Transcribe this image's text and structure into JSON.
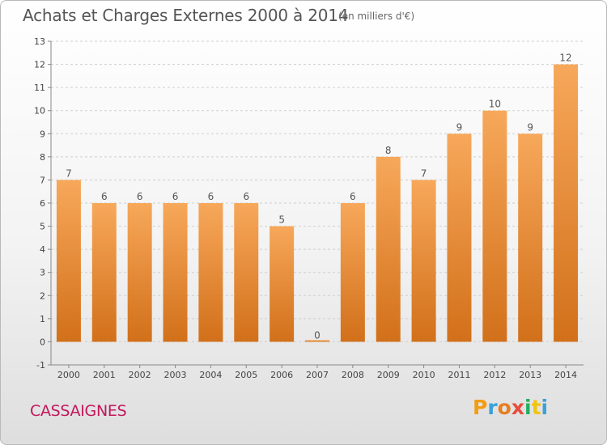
{
  "title": "Achats et Charges Externes 2000 à 2014",
  "subtitle": "(en milliers d'€)",
  "commune": "CASSAIGNES",
  "logo": {
    "letters": [
      "P",
      "r",
      "o",
      "x",
      "i",
      "t",
      "i"
    ],
    "colors": [
      "#f39c12",
      "#3aa0d8",
      "#e67e22",
      "#e74c3c",
      "#27ae60",
      "#f1c40f",
      "#3aa0d8"
    ]
  },
  "colors": {
    "bar_top": "#f7a85a",
    "bar_bottom": "#d2701a",
    "grid": "#cfcfcf"
  },
  "chart_data": {
    "type": "bar",
    "categories": [
      "2000",
      "2001",
      "2002",
      "2003",
      "2004",
      "2005",
      "2006",
      "2007",
      "2008",
      "2009",
      "2010",
      "2011",
      "2012",
      "2013",
      "2014"
    ],
    "values": [
      7,
      6,
      6,
      6,
      6,
      6,
      5,
      0,
      6,
      8,
      7,
      9,
      10,
      9,
      12
    ],
    "yticks": [
      -1,
      0,
      1,
      2,
      3,
      4,
      5,
      6,
      7,
      8,
      9,
      10,
      11,
      12,
      13
    ],
    "ylim": [
      -1,
      13
    ],
    "grid": "horizontal dashed",
    "legend": "none"
  }
}
